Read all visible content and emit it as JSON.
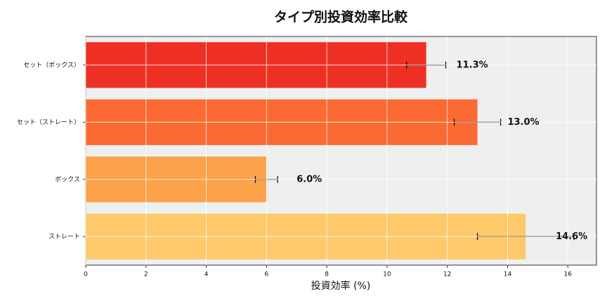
{
  "chart_data": {
    "type": "hbar",
    "title": "タイプ別投資効率比較",
    "x_label": "投資効率 (%)",
    "categories": [
      "セット（ボックス）",
      "セット（ストレート）",
      "ボックス",
      "ストレート"
    ],
    "values": [
      11.3,
      13.0,
      6.0,
      14.6
    ],
    "errors": [
      0.65,
      0.77,
      0.37,
      1.6
    ],
    "value_labels": [
      "11.3%",
      "13.0%",
      "6.0%",
      "14.6%"
    ],
    "colors": [
      "#ee3024",
      "#fc6a33",
      "#fca24a",
      "#fdc96a"
    ],
    "xlim": [
      0,
      16.95
    ],
    "xticks": [
      0,
      2,
      4,
      6,
      8,
      10,
      12,
      14,
      16
    ],
    "grid": true
  }
}
